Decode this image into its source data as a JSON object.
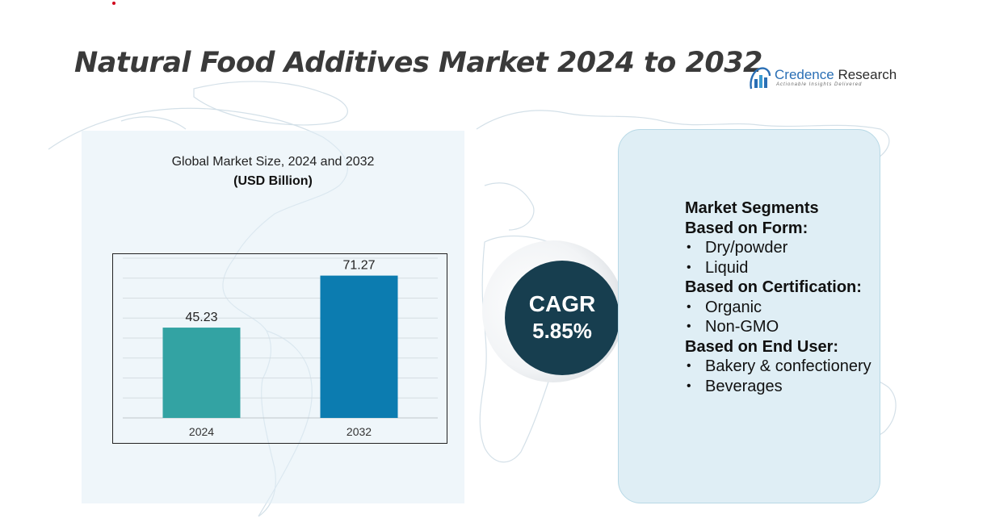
{
  "title": "Natural Food Additives Market 2024 to 2032",
  "brand": {
    "name_part1": "Credence",
    "name_part2": " Research",
    "tagline": "Actionable Insights Delivered",
    "icon": "bar-chart-logo-icon"
  },
  "chart": {
    "subtitle": "Global Market Size, 2024 and 2032",
    "units": "(USD Billion)"
  },
  "chart_data": {
    "type": "bar",
    "categories": [
      "2024",
      "2032"
    ],
    "values": [
      45.23,
      71.27
    ],
    "value_labels": [
      "45.23",
      "71.27"
    ],
    "colors": [
      "#33a3a3",
      "#0c7cb0"
    ],
    "title": "Global Market Size, 2024 and 2032",
    "ylabel": "(USD Billion)",
    "xlabel": "",
    "ylim": [
      0,
      80
    ],
    "grid": true
  },
  "cagr": {
    "label": "CAGR",
    "value": "5.85%"
  },
  "segments": {
    "heading": "Market Segments",
    "groups": [
      {
        "title": "Based on Form:",
        "items": [
          "Dry/powder",
          "Liquid"
        ]
      },
      {
        "title": "Based on Certification:",
        "items": [
          "Organic",
          "Non-GMO"
        ]
      },
      {
        "title": "Based on End User:",
        "items": [
          "Bakery & confectionery",
          "Beverages"
        ]
      }
    ]
  },
  "colors": {
    "title_text": "#3a3a3a",
    "cagr_circle": "#173e4f",
    "left_panel": "#e6f0f6",
    "right_panel": "#dfeef5"
  }
}
